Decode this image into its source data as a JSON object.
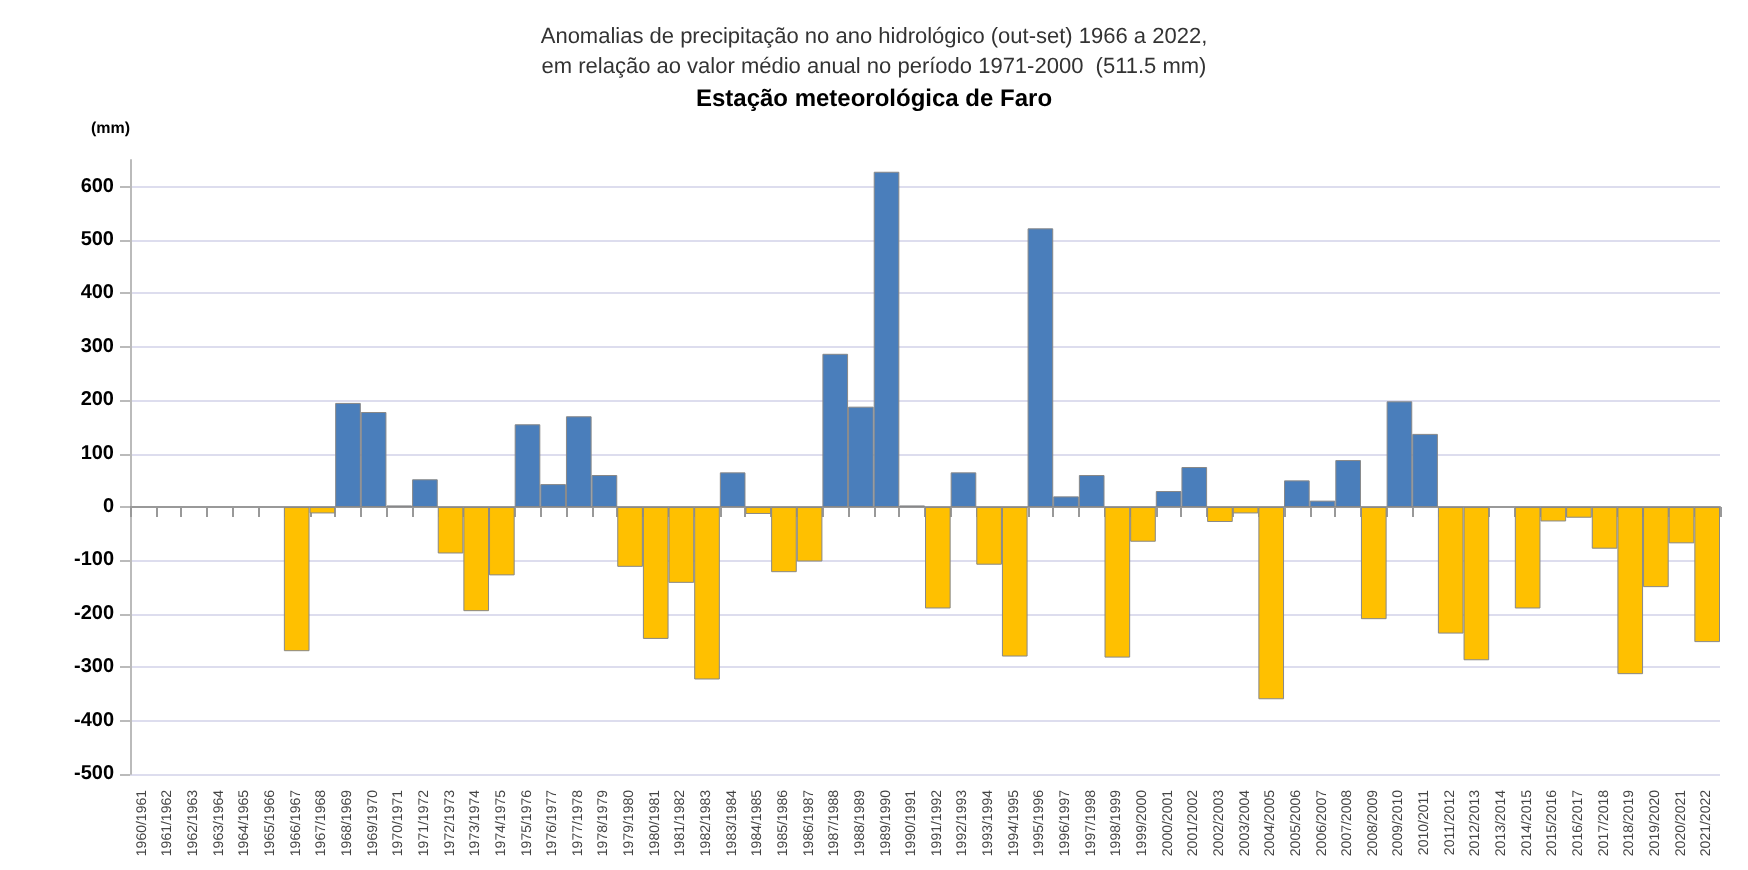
{
  "chart_data": {
    "type": "bar",
    "title": "Estação meteorológica de Faro",
    "subtitle": "Anomalias de precipitação no ano hidrológico (out-set) 1966 a 2022,\nem relação ao valor médio anual no período 1971-2000  (511.5 mm)",
    "ylabel": "(mm)",
    "categories": [
      "1960/1961",
      "1961/1962",
      "1962/1963",
      "1963/1964",
      "1964/1965",
      "1965/1966",
      "1966/1967",
      "1967/1968",
      "1968/1969",
      "1969/1970",
      "1970/1971",
      "1971/1972",
      "1972/1973",
      "1973/1974",
      "1974/1975",
      "1975/1976",
      "1976/1977",
      "1977/1978",
      "1978/1979",
      "1979/1980",
      "1980/1981",
      "1981/1982",
      "1982/1983",
      "1983/1984",
      "1984/1985",
      "1985/1986",
      "1986/1987",
      "1987/1988",
      "1988/1989",
      "1989/1990",
      "1990/1991",
      "1991/1992",
      "1992/1993",
      "1993/1994",
      "1994/1995",
      "1995/1996",
      "1996/1997",
      "1997/1998",
      "1998/1999",
      "1999/2000",
      "2000/2001",
      "2001/2002",
      "2002/2003",
      "2003/2004",
      "2004/2005",
      "2005/2006",
      "2006/2007",
      "2007/2008",
      "2008/2009",
      "2009/2010",
      "2010/2011",
      "2011/2012",
      "2012/2013",
      "2013/2014",
      "2014/2015",
      "2015/2016",
      "2016/2017",
      "2017/2018",
      "2018/2019",
      "2019/2020",
      "2020/2021",
      "2021/2022"
    ],
    "values": [
      null,
      null,
      null,
      null,
      null,
      null,
      -270,
      -12,
      195,
      178,
      3,
      52,
      -87,
      -195,
      -128,
      155,
      43,
      170,
      60,
      -112,
      -247,
      -142,
      -323,
      65,
      -13,
      -122,
      -102,
      287,
      188,
      628,
      3,
      -190,
      65,
      -108,
      -280,
      522,
      20,
      60,
      -282,
      -65,
      30,
      75,
      -28,
      -12,
      -360,
      50,
      12,
      88,
      -210,
      198,
      137,
      -237,
      -287,
      null,
      -190,
      -27,
      -20,
      -78,
      -313,
      -150,
      -68,
      -253
    ],
    "colors": [
      "#4a7ebb",
      "#4a7ebb",
      "#4a7ebb",
      "#4a7ebb",
      "#4a7ebb",
      "#4a7ebb",
      "#ffc000",
      "#ffc000",
      "#4a7ebb",
      "#4a7ebb",
      "#4a7ebb",
      "#4a7ebb",
      "#ffc000",
      "#ffc000",
      "#ffc000",
      "#4a7ebb",
      "#4a7ebb",
      "#4a7ebb",
      "#4a7ebb",
      "#ffc000",
      "#ffc000",
      "#ffc000",
      "#ffc000",
      "#4a7ebb",
      "#ffc000",
      "#ffc000",
      "#ffc000",
      "#4a7ebb",
      "#4a7ebb",
      "#4a7ebb",
      "#4a7ebb",
      "#ffc000",
      "#4a7ebb",
      "#ffc000",
      "#ffc000",
      "#4a7ebb",
      "#4a7ebb",
      "#4a7ebb",
      "#ffc000",
      "#ffc000",
      "#4a7ebb",
      "#4a7ebb",
      "#ffc000",
      "#ffc000",
      "#ffc000",
      "#4a7ebb",
      "#4a7ebb",
      "#4a7ebb",
      "#ffc000",
      "#4a7ebb",
      "#4a7ebb",
      "#ffc000",
      "#ffc000",
      "#ffc000",
      "#ffc000",
      "#ffc000",
      "#ffc000",
      "#ffc000",
      "#ffc000",
      "#ffc000",
      "#ffc000",
      "#ffc000"
    ],
    "ylim": [
      -500,
      650
    ],
    "yticks": [
      -500,
      -400,
      -300,
      -200,
      -100,
      0,
      100,
      200,
      300,
      400,
      500,
      600
    ],
    "grid": "y"
  }
}
